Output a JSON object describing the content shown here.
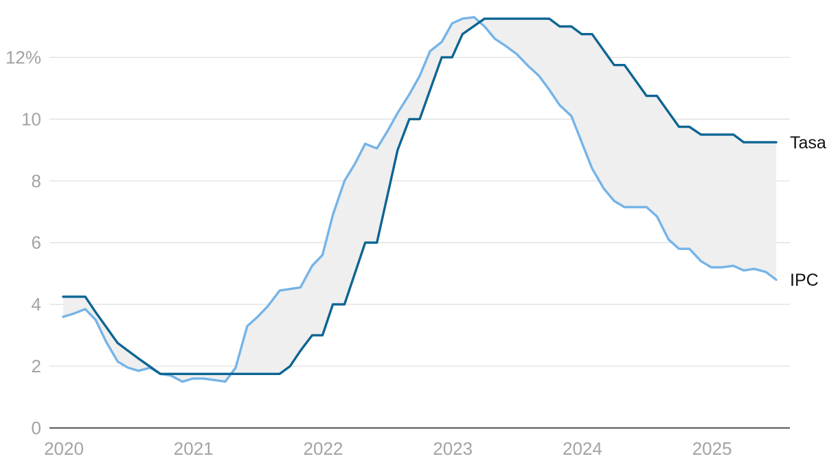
{
  "chart_data": {
    "type": "line",
    "title": "",
    "xlabel": "",
    "ylabel": "",
    "y_unit_suffix": "%",
    "ylim": [
      0,
      13.5
    ],
    "y_ticks": [
      0,
      2,
      4,
      6,
      8,
      10,
      12
    ],
    "y_tick_labels": [
      "0",
      "2",
      "4",
      "6",
      "8",
      "10",
      "12%"
    ],
    "xlim": [
      2020.0,
      2025.5
    ],
    "x_ticks": [
      2020,
      2021,
      2022,
      2023,
      2024,
      2025
    ],
    "x_tick_labels": [
      "2020",
      "2021",
      "2022",
      "2023",
      "2024",
      "2025"
    ],
    "grid": true,
    "fill_between": true,
    "fill_color": "#efefef",
    "series": [
      {
        "name": "Tasa",
        "color": "#0d6593",
        "points": [
          [
            2020.0,
            4.25
          ],
          [
            2020.17,
            4.25
          ],
          [
            2020.25,
            3.75
          ],
          [
            2020.42,
            2.75
          ],
          [
            2020.5,
            2.5
          ],
          [
            2020.58,
            2.25
          ],
          [
            2020.75,
            1.75
          ],
          [
            2020.83,
            1.75
          ],
          [
            2021.0,
            1.75
          ],
          [
            2021.25,
            1.75
          ],
          [
            2021.5,
            1.75
          ],
          [
            2021.67,
            1.75
          ],
          [
            2021.75,
            2.0
          ],
          [
            2021.83,
            2.5
          ],
          [
            2021.92,
            3.0
          ],
          [
            2022.0,
            3.0
          ],
          [
            2022.08,
            4.0
          ],
          [
            2022.17,
            4.0
          ],
          [
            2022.33,
            6.0
          ],
          [
            2022.42,
            6.0
          ],
          [
            2022.58,
            9.0
          ],
          [
            2022.67,
            10.0
          ],
          [
            2022.75,
            10.0
          ],
          [
            2022.92,
            12.0
          ],
          [
            2023.0,
            12.0
          ],
          [
            2023.08,
            12.75
          ],
          [
            2023.25,
            13.25
          ],
          [
            2023.5,
            13.25
          ],
          [
            2023.75,
            13.25
          ],
          [
            2023.83,
            13.0
          ],
          [
            2023.92,
            13.0
          ],
          [
            2024.0,
            12.75
          ],
          [
            2024.08,
            12.75
          ],
          [
            2024.25,
            11.75
          ],
          [
            2024.33,
            11.75
          ],
          [
            2024.5,
            10.75
          ],
          [
            2024.58,
            10.75
          ],
          [
            2024.75,
            9.75
          ],
          [
            2024.83,
            9.75
          ],
          [
            2024.92,
            9.5
          ],
          [
            2025.0,
            9.5
          ],
          [
            2025.17,
            9.5
          ],
          [
            2025.25,
            9.25
          ],
          [
            2025.5,
            9.25
          ]
        ]
      },
      {
        "name": "IPC",
        "color": "#74b4e8",
        "points": [
          [
            2020.0,
            3.6
          ],
          [
            2020.08,
            3.7
          ],
          [
            2020.17,
            3.85
          ],
          [
            2020.25,
            3.5
          ],
          [
            2020.33,
            2.8
          ],
          [
            2020.42,
            2.15
          ],
          [
            2020.5,
            1.95
          ],
          [
            2020.58,
            1.85
          ],
          [
            2020.67,
            1.95
          ],
          [
            2020.75,
            1.75
          ],
          [
            2020.83,
            1.7
          ],
          [
            2020.92,
            1.5
          ],
          [
            2021.0,
            1.6
          ],
          [
            2021.08,
            1.6
          ],
          [
            2021.17,
            1.55
          ],
          [
            2021.25,
            1.5
          ],
          [
            2021.33,
            1.95
          ],
          [
            2021.42,
            3.3
          ],
          [
            2021.5,
            3.6
          ],
          [
            2021.58,
            3.95
          ],
          [
            2021.67,
            4.45
          ],
          [
            2021.75,
            4.5
          ],
          [
            2021.83,
            4.55
          ],
          [
            2021.92,
            5.25
          ],
          [
            2022.0,
            5.6
          ],
          [
            2022.08,
            6.9
          ],
          [
            2022.17,
            8.0
          ],
          [
            2022.25,
            8.55
          ],
          [
            2022.33,
            9.2
          ],
          [
            2022.42,
            9.05
          ],
          [
            2022.5,
            9.6
          ],
          [
            2022.58,
            10.2
          ],
          [
            2022.67,
            10.8
          ],
          [
            2022.75,
            11.4
          ],
          [
            2022.83,
            12.2
          ],
          [
            2022.92,
            12.5
          ],
          [
            2023.0,
            13.1
          ],
          [
            2023.08,
            13.25
          ],
          [
            2023.17,
            13.3
          ],
          [
            2023.25,
            13.0
          ],
          [
            2023.33,
            12.6
          ],
          [
            2023.42,
            12.35
          ],
          [
            2023.5,
            12.1
          ],
          [
            2023.58,
            11.75
          ],
          [
            2023.67,
            11.4
          ],
          [
            2023.75,
            10.95
          ],
          [
            2023.83,
            10.45
          ],
          [
            2023.92,
            10.1
          ],
          [
            2024.0,
            9.25
          ],
          [
            2024.08,
            8.4
          ],
          [
            2024.17,
            7.75
          ],
          [
            2024.25,
            7.35
          ],
          [
            2024.33,
            7.15
          ],
          [
            2024.42,
            7.15
          ],
          [
            2024.5,
            7.15
          ],
          [
            2024.58,
            6.85
          ],
          [
            2024.67,
            6.1
          ],
          [
            2024.75,
            5.8
          ],
          [
            2024.83,
            5.8
          ],
          [
            2024.92,
            5.4
          ],
          [
            2025.0,
            5.2
          ],
          [
            2025.08,
            5.2
          ],
          [
            2025.17,
            5.25
          ],
          [
            2025.25,
            5.1
          ],
          [
            2025.33,
            5.15
          ],
          [
            2025.42,
            5.05
          ],
          [
            2025.5,
            4.8
          ]
        ]
      }
    ]
  }
}
